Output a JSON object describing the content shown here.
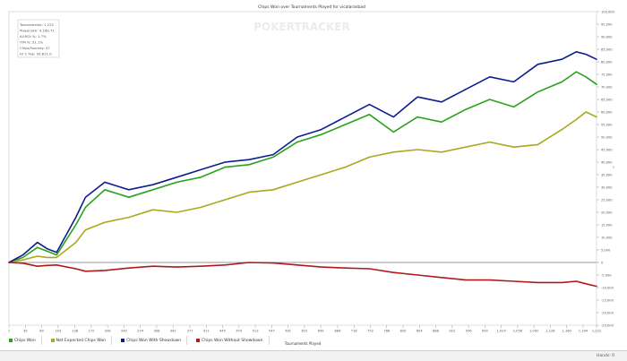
{
  "title": "Chips Won over Tournaments Played for vicalarasbad",
  "watermark": "POKERTRACKER",
  "stats": [
    "Tournaments: 1,222",
    "Players/Hr: 4,160.71",
    "All.ROI %: 1.7%",
    "ITM %: 21.1%",
    "Chips/Tourney: 47",
    "Hr C Fee: 93,811.0"
  ],
  "status": {
    "hands_label": "Hands: 0"
  },
  "colors": {
    "chips_won": "#2aa21c",
    "net_expected": "#a9a81e",
    "with_showdown": "#0e1d8e",
    "without_showdown": "#b0191c"
  },
  "chart_data": {
    "type": "line",
    "title": "Chips Won over Tournaments Played for vicalarasbad",
    "xlabel": "Tournaments Played",
    "ylabel": "",
    "xlim": [
      1,
      1222
    ],
    "ylim": [
      -25000,
      100000
    ],
    "grid": false,
    "legend": "bottom",
    "y_ticks": [
      100000,
      95000,
      90000,
      85000,
      80000,
      75000,
      70000,
      65000,
      60000,
      55000,
      50000,
      45000,
      40000,
      35000,
      30000,
      25000,
      20000,
      15000,
      10000,
      5000,
      0,
      -5000,
      -10000,
      -15000,
      -20000,
      -25000
    ],
    "y_tick_labels": [
      "100,000",
      "95,000",
      "90,000",
      "85,000",
      "80,000",
      "75,000",
      "70,000",
      "65,000",
      "60,000",
      "55,000",
      "50,000",
      "45,000",
      "40,000",
      "35,000",
      "30,000",
      "25,000",
      "20,000",
      "15,000",
      "10,000",
      "5,000",
      "0",
      "-5,000",
      "-10,000",
      "-15,000",
      "-20,000",
      "-25,000"
    ],
    "x_ticks": [
      1,
      35,
      69,
      103,
      138,
      172,
      206,
      240,
      274,
      308,
      342,
      377,
      411,
      445,
      479,
      513,
      547,
      581,
      615,
      649,
      684,
      718,
      752,
      786,
      820,
      854,
      888,
      922,
      956,
      990,
      1024,
      1058,
      1092,
      1126,
      1160,
      1194,
      1222
    ],
    "x_tick_labels": [
      "1",
      "35",
      "69",
      "103",
      "138",
      "172",
      "206",
      "240",
      "274",
      "308",
      "342",
      "377",
      "411",
      "445",
      "479",
      "513",
      "547",
      "581",
      "615",
      "649",
      "684",
      "718",
      "752",
      "786",
      "820",
      "854",
      "888",
      "922",
      "956",
      "990",
      "1,024",
      "1,058",
      "1,092",
      "1,126",
      "1,160",
      "1,194",
      "1,222"
    ],
    "x": [
      1,
      30,
      60,
      80,
      100,
      140,
      160,
      200,
      250,
      300,
      350,
      400,
      450,
      500,
      550,
      600,
      650,
      700,
      750,
      800,
      850,
      900,
      950,
      1000,
      1050,
      1100,
      1150,
      1180,
      1200,
      1222
    ],
    "series": [
      {
        "name": "Chips Won",
        "color": "#2aa21c",
        "values": [
          0,
          2000,
          6000,
          4500,
          3000,
          15000,
          22000,
          29000,
          26000,
          29000,
          32000,
          34000,
          38000,
          39000,
          42000,
          48000,
          51000,
          55000,
          59000,
          52000,
          58000,
          56000,
          61000,
          65000,
          62000,
          68000,
          72000,
          76000,
          74000,
          71000
        ]
      },
      {
        "name": "Net Expected Chips Won",
        "color": "#a9a81e",
        "values": [
          0,
          1000,
          2500,
          2000,
          2000,
          8000,
          13000,
          16000,
          18000,
          21000,
          20000,
          22000,
          25000,
          28000,
          29000,
          32000,
          35000,
          38000,
          42000,
          44000,
          45000,
          44000,
          46000,
          48000,
          46000,
          47000,
          53000,
          57000,
          60000,
          58000
        ]
      },
      {
        "name": "Chips Won With Showdown",
        "color": "#0e1d8e",
        "values": [
          0,
          3000,
          8000,
          5500,
          4000,
          18000,
          26000,
          32000,
          29000,
          31000,
          34000,
          37000,
          40000,
          41000,
          43000,
          50000,
          53000,
          58000,
          63000,
          58000,
          66000,
          64000,
          69000,
          74000,
          72000,
          79000,
          81000,
          84000,
          83000,
          81000
        ]
      },
      {
        "name": "Chips Won Without Showdown",
        "color": "#b0191c",
        "values": [
          0,
          -300,
          -1500,
          -1200,
          -1000,
          -2500,
          -3500,
          -3200,
          -2200,
          -1500,
          -1800,
          -1500,
          -1000,
          0,
          -200,
          -1000,
          -1800,
          -2200,
          -2500,
          -4000,
          -5000,
          -6000,
          -7000,
          -7000,
          -7500,
          -8000,
          -8000,
          -7500,
          -8500,
          -9500
        ]
      }
    ]
  }
}
